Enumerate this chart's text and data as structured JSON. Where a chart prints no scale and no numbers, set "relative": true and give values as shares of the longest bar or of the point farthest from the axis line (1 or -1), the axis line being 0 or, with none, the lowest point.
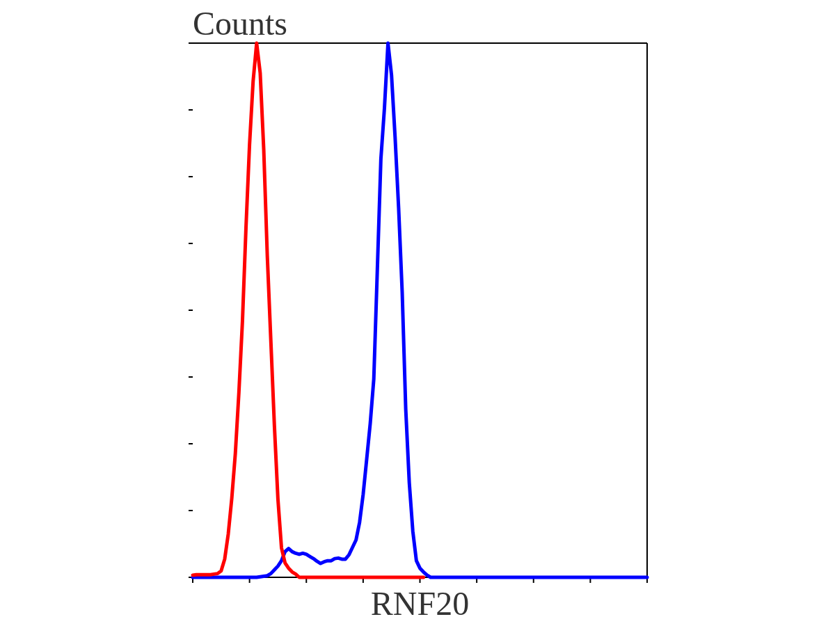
{
  "chart_data": {
    "type": "line",
    "relative": true,
    "ylabel": "Counts",
    "xlabel": "RNF20",
    "categories": [
      null,
      null,
      null,
      null,
      null,
      null,
      null,
      null,
      null,
      null,
      null,
      null,
      null,
      null,
      null,
      null,
      null,
      null,
      null,
      null,
      null,
      null,
      null,
      null,
      null,
      null,
      null,
      null,
      null,
      null,
      null,
      null,
      null,
      null,
      null,
      null,
      null,
      null,
      null,
      null,
      null,
      null,
      null,
      null,
      null,
      null,
      null,
      null,
      null,
      null,
      null,
      null,
      null,
      null,
      null,
      null,
      null,
      null,
      null,
      null,
      null,
      null,
      null,
      null,
      null,
      null,
      null,
      null,
      null,
      null,
      null,
      null,
      null,
      null,
      null,
      null,
      null,
      null,
      null,
      null,
      null,
      null,
      null,
      null,
      null,
      null,
      null,
      null,
      null,
      null,
      null,
      null,
      null,
      null,
      null,
      null,
      null,
      null,
      null,
      null,
      null,
      null,
      null,
      null,
      null,
      null,
      null,
      null,
      null,
      null,
      null,
      null,
      null,
      null,
      null,
      null,
      null,
      null,
      null,
      null,
      null,
      null,
      null,
      null,
      null,
      null,
      null,
      null,
      null
    ],
    "series": [
      {
        "color": "#0000ff",
        "values": [
          0,
          0,
          0,
          0,
          0,
          0,
          0,
          0,
          0,
          0,
          0,
          0,
          0,
          0,
          0,
          0,
          0,
          0,
          0,
          0.001,
          0.002,
          0.003,
          0.007,
          0.014,
          0.021,
          0.031,
          0.048,
          0.054,
          0.048,
          0.045,
          0.043,
          0.045,
          0.043,
          0.039,
          0.035,
          0.03,
          0.026,
          0.029,
          0.031,
          0.031,
          0.035,
          0.036,
          0.034,
          0.034,
          0.042,
          0.056,
          0.07,
          0.103,
          0.155,
          0.221,
          0.288,
          0.371,
          0.576,
          0.783,
          0.878,
          1,
          0.94,
          0.824,
          0.691,
          0.534,
          0.315,
          0.177,
          0.086,
          0.031,
          0.017,
          0.01,
          0.004,
          0,
          0,
          0,
          0,
          0,
          0,
          0,
          0,
          0,
          0,
          0,
          0,
          0,
          0,
          0,
          0,
          0,
          0,
          0,
          0,
          0,
          0,
          0,
          0,
          0,
          0,
          0,
          0,
          0,
          0,
          0,
          0,
          0,
          0,
          0,
          0,
          0,
          0,
          0,
          0,
          0,
          0,
          0,
          0,
          0,
          0,
          0,
          0,
          0,
          0,
          0,
          0,
          0,
          0,
          0,
          0,
          0,
          0,
          0,
          0,
          0,
          0
        ]
      },
      {
        "color": "#ff0000",
        "values": [
          0.004,
          0.005,
          0.005,
          0.005,
          0.005,
          0.005,
          0.006,
          0.007,
          0.012,
          0.034,
          0.081,
          0.148,
          0.232,
          0.346,
          0.479,
          0.655,
          0.81,
          0.928,
          1,
          0.944,
          0.801,
          0.602,
          0.443,
          0.284,
          0.146,
          0.055,
          0.027,
          0.017,
          0.01,
          0.006,
          0,
          0,
          0,
          0,
          0,
          0,
          0,
          0,
          0,
          0,
          0,
          0,
          0,
          0,
          0,
          0,
          0,
          0,
          0,
          0,
          0,
          0,
          0,
          0,
          0,
          0,
          0,
          0,
          0,
          0,
          0,
          0,
          0,
          0,
          0,
          0,
          null,
          null,
          null,
          null,
          null,
          null,
          null,
          null,
          null,
          null,
          null,
          null,
          null,
          null,
          null,
          null,
          null,
          null,
          null,
          null,
          null,
          null,
          null,
          null,
          null,
          null,
          null,
          null,
          null,
          null,
          null,
          null,
          null,
          null,
          null,
          null,
          null,
          null,
          null,
          null,
          null,
          null,
          null,
          null,
          null,
          null,
          null,
          null,
          null,
          null,
          null,
          null,
          null,
          null,
          null,
          null,
          null,
          null,
          null,
          null,
          null,
          null,
          null
        ]
      }
    ]
  }
}
